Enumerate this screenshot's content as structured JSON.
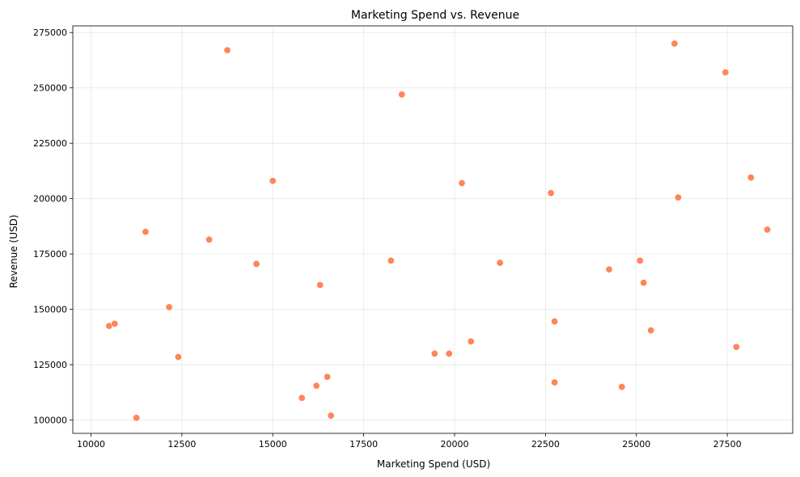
{
  "chart_data": {
    "type": "scatter",
    "title": "Marketing Spend vs. Revenue",
    "xlabel": "Marketing Spend (USD)",
    "ylabel": "Revenue (USD)",
    "xlim": [
      9500,
      29300
    ],
    "ylim": [
      94000,
      278000
    ],
    "xticks": [
      10000,
      12500,
      15000,
      17500,
      20000,
      22500,
      25000,
      27500
    ],
    "yticks": [
      100000,
      125000,
      150000,
      175000,
      200000,
      225000,
      250000,
      275000
    ],
    "grid": true,
    "marker_color": "#ff8559",
    "points": [
      {
        "x": 13750,
        "y": 267000
      },
      {
        "x": 26050,
        "y": 270000
      },
      {
        "x": 27450,
        "y": 257000
      },
      {
        "x": 18550,
        "y": 247000
      },
      {
        "x": 15000,
        "y": 208000
      },
      {
        "x": 20200,
        "y": 207000
      },
      {
        "x": 22650,
        "y": 202500
      },
      {
        "x": 28150,
        "y": 209500
      },
      {
        "x": 26150,
        "y": 200500
      },
      {
        "x": 11500,
        "y": 185000
      },
      {
        "x": 13250,
        "y": 181500
      },
      {
        "x": 28600,
        "y": 186000
      },
      {
        "x": 14550,
        "y": 170500
      },
      {
        "x": 18250,
        "y": 172000
      },
      {
        "x": 21250,
        "y": 171000
      },
      {
        "x": 25100,
        "y": 172000
      },
      {
        "x": 24250,
        "y": 168000
      },
      {
        "x": 16300,
        "y": 161000
      },
      {
        "x": 25200,
        "y": 162000
      },
      {
        "x": 12150,
        "y": 151000
      },
      {
        "x": 10500,
        "y": 142500
      },
      {
        "x": 10650,
        "y": 143500
      },
      {
        "x": 22750,
        "y": 144500
      },
      {
        "x": 25400,
        "y": 140500
      },
      {
        "x": 20450,
        "y": 135500
      },
      {
        "x": 27750,
        "y": 133000
      },
      {
        "x": 19450,
        "y": 130000
      },
      {
        "x": 19850,
        "y": 130000
      },
      {
        "x": 12400,
        "y": 128500
      },
      {
        "x": 16500,
        "y": 119500
      },
      {
        "x": 16200,
        "y": 115500
      },
      {
        "x": 22750,
        "y": 117000
      },
      {
        "x": 24600,
        "y": 115000
      },
      {
        "x": 15800,
        "y": 110000
      },
      {
        "x": 16600,
        "y": 102000
      },
      {
        "x": 11250,
        "y": 101000
      }
    ]
  }
}
